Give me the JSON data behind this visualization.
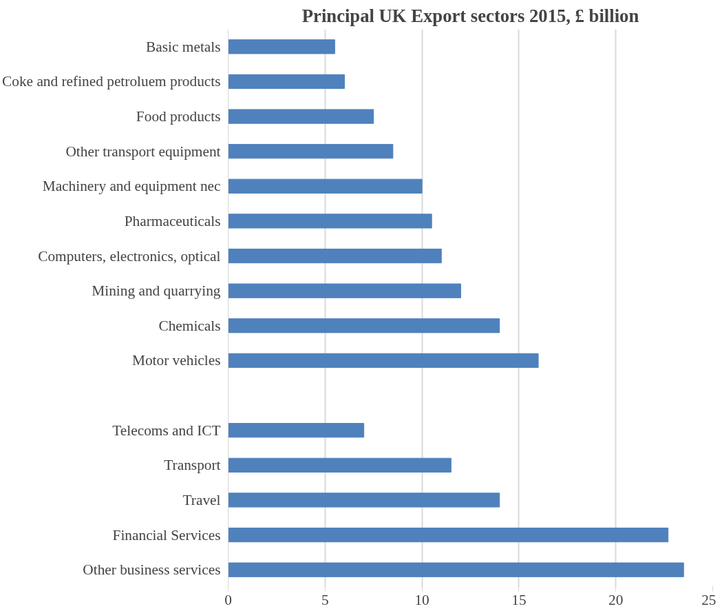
{
  "chart_data": {
    "type": "bar",
    "orientation": "horizontal",
    "title": "Principal UK Export sectors 2015, £ billion",
    "categories": [
      "Basic metals",
      "Coke and refined petroluem products",
      "Food products",
      "Other transport equipment",
      "Machinery and equipment nec",
      "Pharmaceuticals",
      "Computers, electronics, optical",
      "Mining and quarrying",
      "Chemicals",
      "Motor vehicles",
      null,
      "Telecoms and ICT",
      "Transport",
      "Travel",
      "Financial Services",
      "Other business services"
    ],
    "values": [
      5.5,
      6,
      7.5,
      8.5,
      10,
      10.5,
      11,
      12,
      14,
      16,
      null,
      7,
      11.5,
      14,
      22.7,
      23.5
    ],
    "color": "#4f81bd",
    "xlim": [
      0,
      25
    ],
    "xticks": [
      0,
      5,
      10,
      15,
      20,
      25
    ],
    "grid": "x"
  }
}
